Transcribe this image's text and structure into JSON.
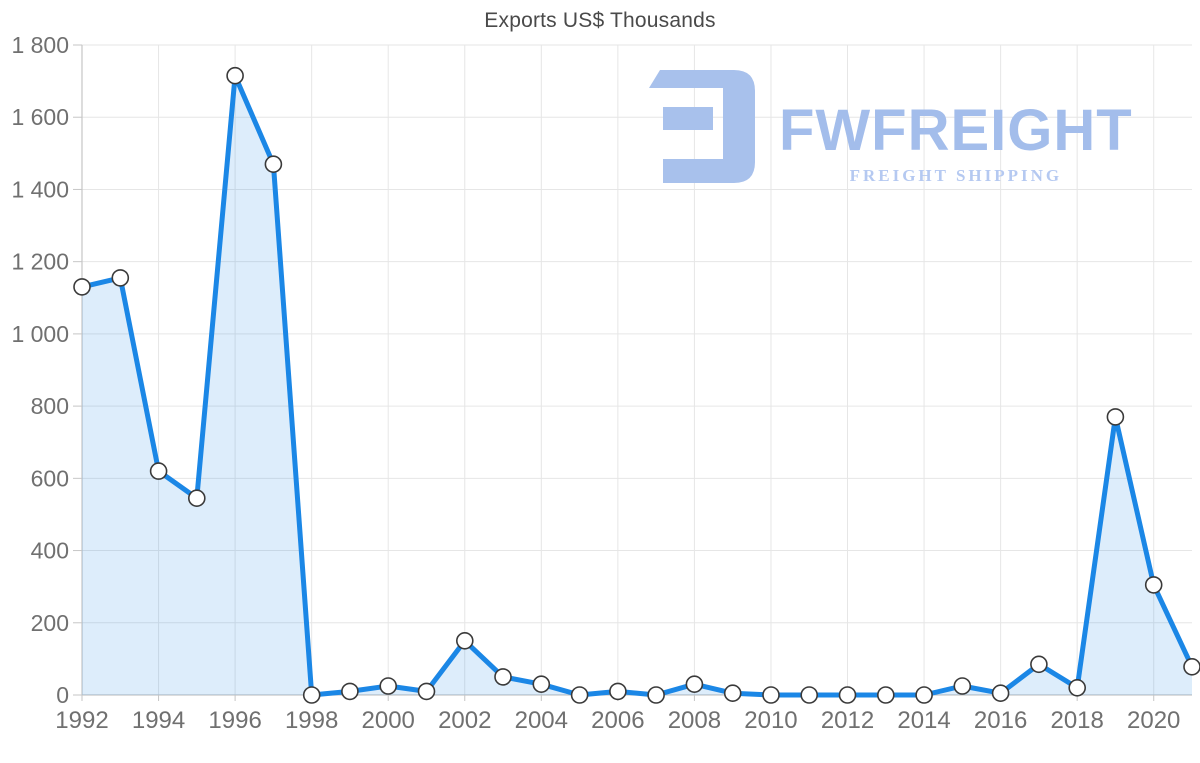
{
  "title": "Exports US$ Thousands",
  "logo": {
    "brand": "FWFREIGHT",
    "tagline": "FREIGHT SHIPPING",
    "mark_color": "#a8c1ec",
    "brand_color": "#a3bdeb",
    "tagline_color": "#b5c9f1"
  },
  "chart_data": {
    "type": "area",
    "title": "Exports US$ Thousands",
    "x": [
      1992,
      1993,
      1994,
      1995,
      1996,
      1997,
      1998,
      1999,
      2000,
      2001,
      2002,
      2003,
      2004,
      2005,
      2006,
      2007,
      2008,
      2009,
      2010,
      2011,
      2012,
      2013,
      2014,
      2015,
      2016,
      2017,
      2018,
      2019,
      2020,
      2021
    ],
    "series": [
      {
        "name": "Exports US$ Thousands",
        "values": [
          1130,
          1155,
          620,
          545,
          1715,
          1470,
          0,
          10,
          25,
          10,
          150,
          50,
          30,
          0,
          10,
          0,
          30,
          5,
          0,
          0,
          0,
          0,
          0,
          25,
          5,
          85,
          20,
          770,
          305,
          78
        ]
      }
    ],
    "xlabel": "",
    "ylabel": "",
    "ylim": [
      0,
      1800
    ],
    "y_ticks": [
      0,
      200,
      400,
      600,
      800,
      1000,
      1200,
      1400,
      1600,
      1800
    ],
    "y_tick_labels": [
      "0",
      "200",
      "400",
      "600",
      "800",
      "1 000",
      "1 200",
      "1 400",
      "1 600",
      "1 800"
    ],
    "x_tick_labels": [
      "1992",
      "1994",
      "1996",
      "1998",
      "2000",
      "2002",
      "2004",
      "2006",
      "2008",
      "2010",
      "2012",
      "2014",
      "2016",
      "2018",
      "2020"
    ],
    "grid": true,
    "legend": "none",
    "line_color": "#1b87e6",
    "fill_color": "rgba(30,136,229,0.15)",
    "marker_fill": "#ffffff",
    "marker_stroke": "#3a3a3a",
    "grid_color": "#e6e6e6",
    "axis_color": "#c6c6c6",
    "tick_label_color": "#707070",
    "title_color": "#4a4a4a"
  }
}
